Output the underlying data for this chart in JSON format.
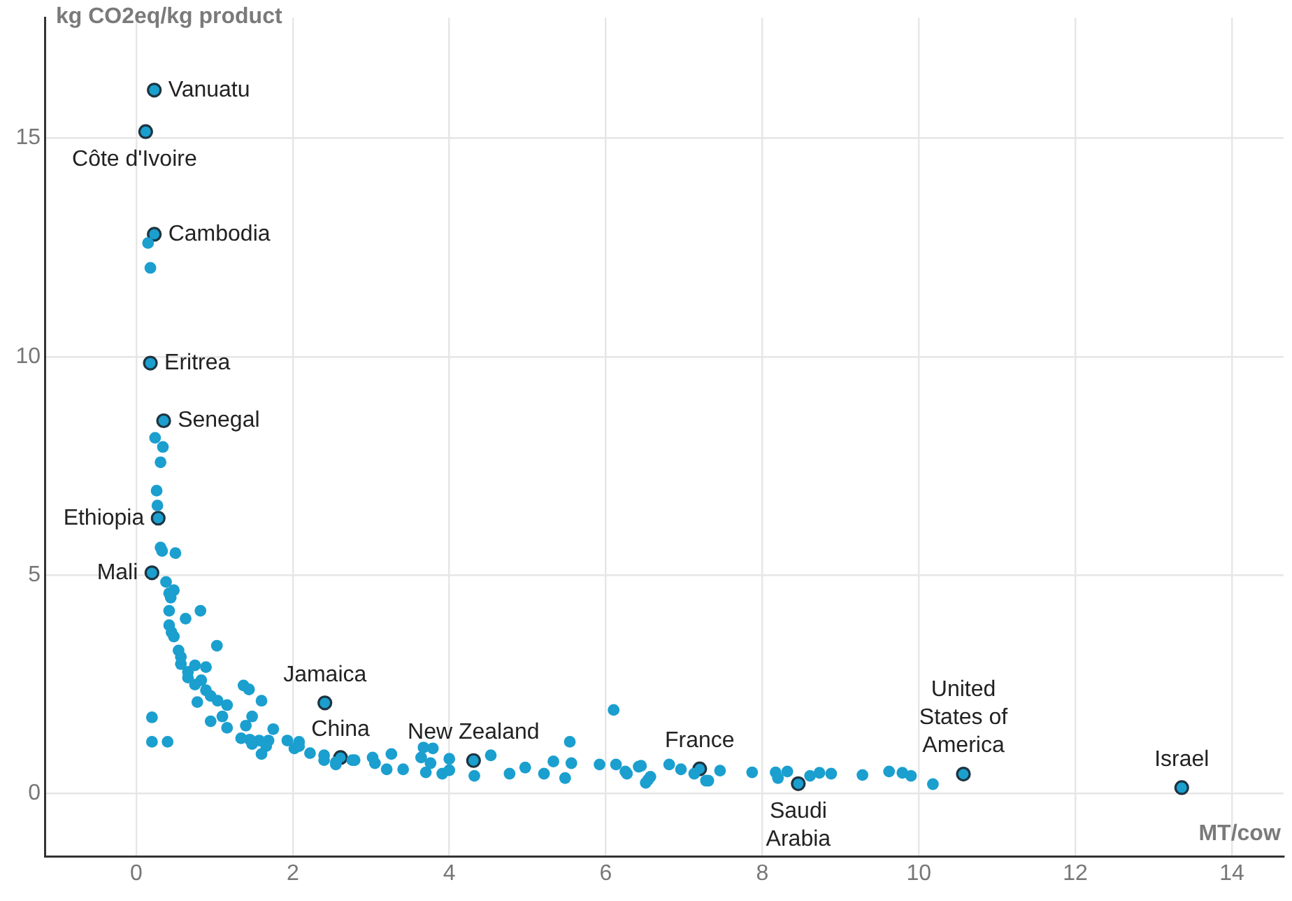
{
  "chart_data": {
    "type": "scatter",
    "ylabel": "kg CO2eq/kg product",
    "xlabel": "MT/cow",
    "xlim": [
      -1.17,
      14.66
    ],
    "ylim": [
      -1.44,
      17.76
    ],
    "xticks": [
      0,
      2,
      4,
      6,
      8,
      10,
      12,
      14
    ],
    "yticks": [
      0,
      5,
      10,
      15
    ],
    "grid": true,
    "legend": false,
    "marker": "circle",
    "series": [
      {
        "color": "#1a9fcf",
        "x": [
          0.24,
          0.34,
          0.31,
          0.26,
          0.27,
          0.31,
          0.33,
          0.5,
          0.38,
          0.48,
          0.42,
          0.44,
          0.42,
          0.82,
          0.63,
          0.42,
          0.45,
          0.48,
          1.03,
          0.54,
          0.57,
          0.57,
          0.75,
          0.89,
          0.66,
          0.66,
          0.83,
          0.75,
          1.37,
          1.44,
          0.89,
          0.95,
          1.04,
          0.78,
          1.6,
          1.16,
          0.2,
          0.95,
          1.1,
          1.48,
          1.16,
          1.4,
          1.75,
          1.34,
          1.45,
          1.57,
          1.69,
          0.2,
          0.4,
          1.48,
          1.66,
          1.6,
          1.93,
          2.08,
          2.02,
          2.22,
          2.4,
          2.55,
          2.76,
          0.15,
          0.18,
          2.08,
          2.4,
          2.55,
          2.79,
          3.02,
          3.05,
          3.2,
          3.26,
          3.41,
          3.64,
          3.67,
          3.79,
          3.76,
          3.7,
          3.91,
          4.0,
          4.0,
          4.32,
          4.53,
          4.77,
          4.97,
          5.21,
          5.33,
          5.54,
          5.48,
          5.56,
          5.92,
          6.1,
          6.13,
          6.25,
          6.42,
          6.51,
          6.57,
          6.81,
          6.96,
          7.31,
          7.46,
          7.87,
          6.27,
          6.45,
          6.54,
          7.13,
          7.28,
          8.17,
          8.2,
          8.32,
          8.61,
          8.73,
          8.88,
          9.28,
          9.62,
          9.79,
          9.9,
          10.18
        ],
        "values": [
          8.14,
          7.93,
          7.58,
          6.93,
          6.59,
          5.63,
          5.55,
          5.5,
          4.84,
          4.65,
          4.58,
          4.48,
          4.18,
          4.18,
          4.0,
          3.85,
          3.69,
          3.59,
          3.38,
          3.27,
          3.12,
          2.96,
          2.93,
          2.89,
          2.78,
          2.65,
          2.59,
          2.49,
          2.47,
          2.38,
          2.36,
          2.23,
          2.12,
          2.09,
          2.12,
          2.02,
          1.74,
          1.65,
          1.76,
          1.76,
          1.5,
          1.55,
          1.47,
          1.26,
          1.23,
          1.21,
          1.21,
          1.18,
          1.18,
          1.13,
          1.08,
          0.9,
          1.21,
          1.18,
          1.03,
          0.92,
          0.87,
          0.71,
          0.76,
          12.6,
          12.03,
          1.08,
          0.76,
          0.66,
          0.76,
          0.82,
          0.69,
          0.55,
          0.9,
          0.55,
          0.82,
          1.05,
          1.03,
          0.69,
          0.48,
          0.45,
          0.79,
          0.53,
          0.4,
          0.87,
          0.45,
          0.59,
          0.45,
          0.73,
          1.18,
          0.35,
          0.69,
          0.66,
          1.91,
          0.66,
          0.5,
          0.61,
          0.24,
          0.38,
          0.66,
          0.55,
          0.29,
          0.52,
          0.48,
          0.45,
          0.63,
          0.31,
          0.45,
          0.29,
          0.48,
          0.35,
          0.5,
          0.4,
          0.47,
          0.45,
          0.42,
          0.5,
          0.47,
          0.4,
          0.21
        ]
      },
      {
        "color": "#1a9fcf",
        "x": [
          0.23,
          0.12,
          0.23,
          0.18,
          0.35,
          0.28,
          0.2,
          2.41,
          2.61,
          4.31,
          7.2,
          8.46,
          10.57,
          13.36
        ],
        "values": [
          16.1,
          15.15,
          12.8,
          9.85,
          8.53,
          6.3,
          5.05,
          2.07,
          0.82,
          0.75,
          0.56,
          0.22,
          0.44,
          0.13
        ]
      }
    ],
    "annotations": [
      {
        "text": "Vanuatu",
        "x": 0.23,
        "y": 16.1
      },
      {
        "text": "Côte d'Ivoire",
        "x": 0.12,
        "y": 15.15
      },
      {
        "text": "Cambodia",
        "x": 0.23,
        "y": 12.8
      },
      {
        "text": "Eritrea",
        "x": 0.18,
        "y": 9.85
      },
      {
        "text": "Senegal",
        "x": 0.35,
        "y": 8.53
      },
      {
        "text": "Ethiopia",
        "x": 0.28,
        "y": 6.3
      },
      {
        "text": "Mali",
        "x": 0.2,
        "y": 5.05
      },
      {
        "text": "Jamaica",
        "x": 2.41,
        "y": 2.07
      },
      {
        "text": "China",
        "x": 2.61,
        "y": 0.82
      },
      {
        "text": "New Zealand",
        "x": 4.31,
        "y": 0.75
      },
      {
        "text": "France",
        "x": 7.2,
        "y": 0.56
      },
      {
        "text": "Saudi Arabia",
        "x": 8.46,
        "y": 0.22
      },
      {
        "text": "United States of America",
        "x": 10.57,
        "y": 0.44
      },
      {
        "text": "Israel",
        "x": 13.36,
        "y": 0.13
      }
    ]
  }
}
